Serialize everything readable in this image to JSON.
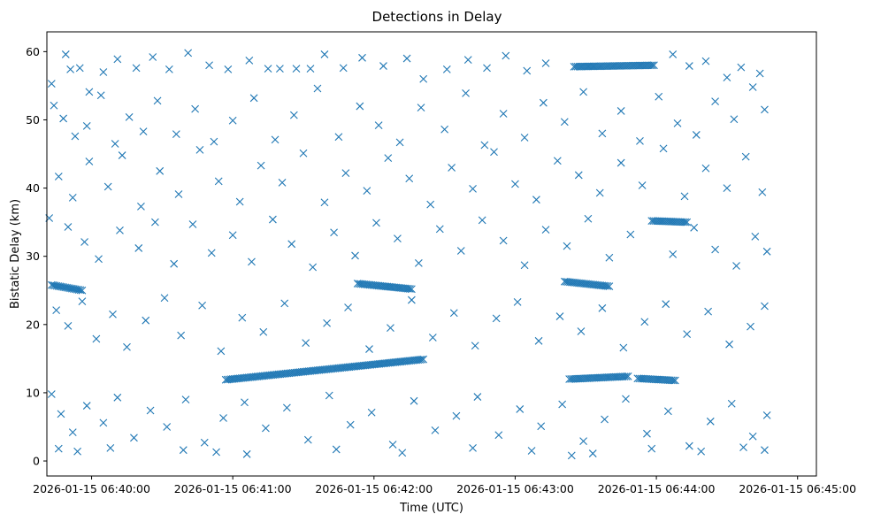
{
  "chart_data": {
    "type": "scatter",
    "title": "Detections in Delay",
    "xlabel": "Time (UTC)",
    "ylabel": "Bistatic Delay (km)",
    "marker": "x",
    "color": "#1f77b4",
    "grid": false,
    "x_axis": {
      "type": "time",
      "min": "2026-01-15 06:39:41",
      "max": "2026-01-15 06:45:08",
      "ticks": [
        "2026-01-15 06:40:00",
        "2026-01-15 06:41:00",
        "2026-01-15 06:42:00",
        "2026-01-15 06:43:00",
        "2026-01-15 06:44:00",
        "2026-01-15 06:45:00"
      ]
    },
    "y_axis": {
      "min": -2.2,
      "max": 62.9,
      "ticks": [
        0,
        10,
        20,
        30,
        40,
        50,
        60
      ]
    },
    "tracks": [
      {
        "start": [
          "2026-01-15 06:40:57",
          11.9
        ],
        "end": [
          "2026-01-15 06:42:21",
          14.9
        ]
      },
      {
        "start": [
          "2026-01-15 06:43:23",
          12.0
        ],
        "end": [
          "2026-01-15 06:43:48",
          12.4
        ]
      },
      {
        "start": [
          "2026-01-15 06:43:52",
          12.1
        ],
        "end": [
          "2026-01-15 06:44:08",
          11.8
        ]
      },
      {
        "start": [
          "2026-01-15 06:43:25",
          57.8
        ],
        "end": [
          "2026-01-15 06:43:59",
          58.0
        ]
      },
      {
        "start": [
          "2026-01-15 06:41:53",
          26.0
        ],
        "end": [
          "2026-01-15 06:42:16",
          25.2
        ]
      },
      {
        "start": [
          "2026-01-15 06:39:43",
          25.8
        ],
        "end": [
          "2026-01-15 06:39:56",
          25.0
        ]
      },
      {
        "start": [
          "2026-01-15 06:43:21",
          26.3
        ],
        "end": [
          "2026-01-15 06:43:40",
          25.6
        ]
      },
      {
        "start": [
          "2026-01-15 06:43:58",
          35.2
        ],
        "end": [
          "2026-01-15 06:44:13",
          35.0
        ]
      }
    ],
    "points": [
      [
        "2026-01-15 06:39:43",
        55.3
      ],
      [
        "2026-01-15 06:39:49",
        59.6
      ],
      [
        "2026-01-15 06:39:51",
        57.4
      ],
      [
        "2026-01-15 06:39:55",
        57.6
      ],
      [
        "2026-01-15 06:39:59",
        54.1
      ],
      [
        "2026-01-15 06:40:05",
        57.0
      ],
      [
        "2026-01-15 06:40:11",
        58.9
      ],
      [
        "2026-01-15 06:40:19",
        57.6
      ],
      [
        "2026-01-15 06:40:26",
        59.2
      ],
      [
        "2026-01-15 06:40:33",
        57.4
      ],
      [
        "2026-01-15 06:40:41",
        59.8
      ],
      [
        "2026-01-15 06:40:50",
        58.0
      ],
      [
        "2026-01-15 06:40:58",
        57.4
      ],
      [
        "2026-01-15 06:41:07",
        58.7
      ],
      [
        "2026-01-15 06:41:15",
        57.5
      ],
      [
        "2026-01-15 06:41:20",
        57.5
      ],
      [
        "2026-01-15 06:41:27",
        57.5
      ],
      [
        "2026-01-15 06:41:33",
        57.5
      ],
      [
        "2026-01-15 06:41:39",
        59.6
      ],
      [
        "2026-01-15 06:41:47",
        57.6
      ],
      [
        "2026-01-15 06:41:55",
        59.1
      ],
      [
        "2026-01-15 06:42:04",
        57.9
      ],
      [
        "2026-01-15 06:42:14",
        59.0
      ],
      [
        "2026-01-15 06:42:21",
        56.0
      ],
      [
        "2026-01-15 06:42:31",
        57.4
      ],
      [
        "2026-01-15 06:42:40",
        58.8
      ],
      [
        "2026-01-15 06:42:48",
        57.6
      ],
      [
        "2026-01-15 06:42:56",
        59.4
      ],
      [
        "2026-01-15 06:43:05",
        57.2
      ],
      [
        "2026-01-15 06:43:13",
        58.3
      ],
      [
        "2026-01-15 06:44:07",
        59.6
      ],
      [
        "2026-01-15 06:44:14",
        57.9
      ],
      [
        "2026-01-15 06:44:21",
        58.6
      ],
      [
        "2026-01-15 06:44:30",
        56.2
      ],
      [
        "2026-01-15 06:44:36",
        57.7
      ],
      [
        "2026-01-15 06:44:44",
        56.8
      ],
      [
        "2026-01-15 06:39:44",
        52.1
      ],
      [
        "2026-01-15 06:39:48",
        50.2
      ],
      [
        "2026-01-15 06:39:53",
        47.6
      ],
      [
        "2026-01-15 06:39:58",
        49.1
      ],
      [
        "2026-01-15 06:40:04",
        53.6
      ],
      [
        "2026-01-15 06:40:10",
        46.5
      ],
      [
        "2026-01-15 06:40:16",
        50.4
      ],
      [
        "2026-01-15 06:40:22",
        48.3
      ],
      [
        "2026-01-15 06:40:28",
        52.8
      ],
      [
        "2026-01-15 06:40:36",
        47.9
      ],
      [
        "2026-01-15 06:40:44",
        51.6
      ],
      [
        "2026-01-15 06:40:52",
        46.8
      ],
      [
        "2026-01-15 06:41:00",
        49.9
      ],
      [
        "2026-01-15 06:41:09",
        53.2
      ],
      [
        "2026-01-15 06:41:18",
        47.1
      ],
      [
        "2026-01-15 06:41:26",
        50.7
      ],
      [
        "2026-01-15 06:41:36",
        54.6
      ],
      [
        "2026-01-15 06:41:45",
        47.5
      ],
      [
        "2026-01-15 06:41:54",
        52.0
      ],
      [
        "2026-01-15 06:42:02",
        49.2
      ],
      [
        "2026-01-15 06:42:11",
        46.7
      ],
      [
        "2026-01-15 06:42:20",
        51.8
      ],
      [
        "2026-01-15 06:42:30",
        48.6
      ],
      [
        "2026-01-15 06:42:39",
        53.9
      ],
      [
        "2026-01-15 06:42:47",
        46.3
      ],
      [
        "2026-01-15 06:42:55",
        50.9
      ],
      [
        "2026-01-15 06:43:04",
        47.4
      ],
      [
        "2026-01-15 06:43:12",
        52.5
      ],
      [
        "2026-01-15 06:43:21",
        49.7
      ],
      [
        "2026-01-15 06:43:29",
        54.1
      ],
      [
        "2026-01-15 06:43:37",
        48.0
      ],
      [
        "2026-01-15 06:43:45",
        51.3
      ],
      [
        "2026-01-15 06:43:53",
        46.9
      ],
      [
        "2026-01-15 06:44:01",
        53.4
      ],
      [
        "2026-01-15 06:44:09",
        49.5
      ],
      [
        "2026-01-15 06:44:17",
        47.8
      ],
      [
        "2026-01-15 06:44:25",
        52.7
      ],
      [
        "2026-01-15 06:44:33",
        50.1
      ],
      [
        "2026-01-15 06:44:41",
        54.8
      ],
      [
        "2026-01-15 06:44:46",
        51.5
      ],
      [
        "2026-01-15 06:39:46",
        41.7
      ],
      [
        "2026-01-15 06:39:52",
        38.6
      ],
      [
        "2026-01-15 06:39:59",
        43.9
      ],
      [
        "2026-01-15 06:40:07",
        40.2
      ],
      [
        "2026-01-15 06:40:13",
        44.8
      ],
      [
        "2026-01-15 06:40:21",
        37.3
      ],
      [
        "2026-01-15 06:40:29",
        42.5
      ],
      [
        "2026-01-15 06:40:37",
        39.1
      ],
      [
        "2026-01-15 06:40:46",
        45.6
      ],
      [
        "2026-01-15 06:40:54",
        41.0
      ],
      [
        "2026-01-15 06:41:03",
        38.0
      ],
      [
        "2026-01-15 06:41:12",
        43.3
      ],
      [
        "2026-01-15 06:41:21",
        40.8
      ],
      [
        "2026-01-15 06:41:30",
        45.1
      ],
      [
        "2026-01-15 06:41:39",
        37.9
      ],
      [
        "2026-01-15 06:41:48",
        42.2
      ],
      [
        "2026-01-15 06:41:57",
        39.6
      ],
      [
        "2026-01-15 06:42:06",
        44.4
      ],
      [
        "2026-01-15 06:42:15",
        41.4
      ],
      [
        "2026-01-15 06:42:24",
        37.6
      ],
      [
        "2026-01-15 06:42:33",
        43.0
      ],
      [
        "2026-01-15 06:42:42",
        39.9
      ],
      [
        "2026-01-15 06:42:51",
        45.3
      ],
      [
        "2026-01-15 06:43:00",
        40.6
      ],
      [
        "2026-01-15 06:43:09",
        38.3
      ],
      [
        "2026-01-15 06:43:18",
        44.0
      ],
      [
        "2026-01-15 06:43:27",
        41.9
      ],
      [
        "2026-01-15 06:43:36",
        39.3
      ],
      [
        "2026-01-15 06:43:45",
        43.7
      ],
      [
        "2026-01-15 06:43:54",
        40.4
      ],
      [
        "2026-01-15 06:44:03",
        45.8
      ],
      [
        "2026-01-15 06:44:12",
        38.8
      ],
      [
        "2026-01-15 06:44:21",
        42.9
      ],
      [
        "2026-01-15 06:44:30",
        40.0
      ],
      [
        "2026-01-15 06:44:38",
        44.6
      ],
      [
        "2026-01-15 06:44:45",
        39.4
      ],
      [
        "2026-01-15 06:39:42",
        35.6
      ],
      [
        "2026-01-15 06:39:50",
        34.3
      ],
      [
        "2026-01-15 06:39:57",
        32.1
      ],
      [
        "2026-01-15 06:40:03",
        29.6
      ],
      [
        "2026-01-15 06:40:12",
        33.8
      ],
      [
        "2026-01-15 06:40:20",
        31.2
      ],
      [
        "2026-01-15 06:40:27",
        35.0
      ],
      [
        "2026-01-15 06:40:35",
        28.9
      ],
      [
        "2026-01-15 06:40:43",
        34.7
      ],
      [
        "2026-01-15 06:40:51",
        30.5
      ],
      [
        "2026-01-15 06:41:00",
        33.1
      ],
      [
        "2026-01-15 06:41:08",
        29.2
      ],
      [
        "2026-01-15 06:41:17",
        35.4
      ],
      [
        "2026-01-15 06:41:25",
        31.8
      ],
      [
        "2026-01-15 06:41:34",
        28.4
      ],
      [
        "2026-01-15 06:41:43",
        33.5
      ],
      [
        "2026-01-15 06:41:52",
        30.1
      ],
      [
        "2026-01-15 06:42:01",
        34.9
      ],
      [
        "2026-01-15 06:42:10",
        32.6
      ],
      [
        "2026-01-15 06:42:19",
        29.0
      ],
      [
        "2026-01-15 06:42:28",
        34.0
      ],
      [
        "2026-01-15 06:42:37",
        30.8
      ],
      [
        "2026-01-15 06:42:46",
        35.3
      ],
      [
        "2026-01-15 06:42:55",
        32.3
      ],
      [
        "2026-01-15 06:43:04",
        28.7
      ],
      [
        "2026-01-15 06:43:13",
        33.9
      ],
      [
        "2026-01-15 06:43:22",
        31.5
      ],
      [
        "2026-01-15 06:43:31",
        35.5
      ],
      [
        "2026-01-15 06:43:40",
        29.8
      ],
      [
        "2026-01-15 06:43:49",
        33.2
      ],
      [
        "2026-01-15 06:44:07",
        30.3
      ],
      [
        "2026-01-15 06:44:16",
        34.2
      ],
      [
        "2026-01-15 06:44:25",
        31.0
      ],
      [
        "2026-01-15 06:44:34",
        28.6
      ],
      [
        "2026-01-15 06:44:42",
        32.9
      ],
      [
        "2026-01-15 06:44:47",
        30.7
      ],
      [
        "2026-01-15 06:39:45",
        22.1
      ],
      [
        "2026-01-15 06:39:50",
        19.8
      ],
      [
        "2026-01-15 06:39:56",
        23.4
      ],
      [
        "2026-01-15 06:40:02",
        17.9
      ],
      [
        "2026-01-15 06:40:09",
        21.5
      ],
      [
        "2026-01-15 06:40:15",
        16.7
      ],
      [
        "2026-01-15 06:40:23",
        20.6
      ],
      [
        "2026-01-15 06:40:31",
        23.9
      ],
      [
        "2026-01-15 06:40:38",
        18.4
      ],
      [
        "2026-01-15 06:40:47",
        22.8
      ],
      [
        "2026-01-15 06:40:55",
        16.1
      ],
      [
        "2026-01-15 06:41:04",
        21.0
      ],
      [
        "2026-01-15 06:41:13",
        18.9
      ],
      [
        "2026-01-15 06:41:22",
        23.1
      ],
      [
        "2026-01-15 06:41:31",
        17.3
      ],
      [
        "2026-01-15 06:41:40",
        20.2
      ],
      [
        "2026-01-15 06:41:49",
        22.5
      ],
      [
        "2026-01-15 06:41:58",
        16.4
      ],
      [
        "2026-01-15 06:42:07",
        19.5
      ],
      [
        "2026-01-15 06:42:16",
        23.6
      ],
      [
        "2026-01-15 06:42:25",
        18.1
      ],
      [
        "2026-01-15 06:42:34",
        21.7
      ],
      [
        "2026-01-15 06:42:43",
        16.9
      ],
      [
        "2026-01-15 06:42:52",
        20.9
      ],
      [
        "2026-01-15 06:43:01",
        23.3
      ],
      [
        "2026-01-15 06:43:10",
        17.6
      ],
      [
        "2026-01-15 06:43:19",
        21.2
      ],
      [
        "2026-01-15 06:43:28",
        19.0
      ],
      [
        "2026-01-15 06:43:37",
        22.4
      ],
      [
        "2026-01-15 06:43:46",
        16.6
      ],
      [
        "2026-01-15 06:43:55",
        20.4
      ],
      [
        "2026-01-15 06:44:04",
        23.0
      ],
      [
        "2026-01-15 06:44:13",
        18.6
      ],
      [
        "2026-01-15 06:44:22",
        21.9
      ],
      [
        "2026-01-15 06:44:31",
        17.1
      ],
      [
        "2026-01-15 06:44:40",
        19.7
      ],
      [
        "2026-01-15 06:44:46",
        22.7
      ],
      [
        "2026-01-15 06:39:43",
        9.8
      ],
      [
        "2026-01-15 06:39:47",
        6.9
      ],
      [
        "2026-01-15 06:39:52",
        4.2
      ],
      [
        "2026-01-15 06:39:58",
        8.1
      ],
      [
        "2026-01-15 06:40:05",
        5.6
      ],
      [
        "2026-01-15 06:40:11",
        9.3
      ],
      [
        "2026-01-15 06:40:18",
        3.4
      ],
      [
        "2026-01-15 06:40:25",
        7.4
      ],
      [
        "2026-01-15 06:40:32",
        5.0
      ],
      [
        "2026-01-15 06:40:40",
        9.0
      ],
      [
        "2026-01-15 06:40:48",
        2.7
      ],
      [
        "2026-01-15 06:40:56",
        6.3
      ],
      [
        "2026-01-15 06:41:05",
        8.6
      ],
      [
        "2026-01-15 06:41:14",
        4.8
      ],
      [
        "2026-01-15 06:41:23",
        7.8
      ],
      [
        "2026-01-15 06:41:32",
        3.1
      ],
      [
        "2026-01-15 06:41:41",
        9.6
      ],
      [
        "2026-01-15 06:41:50",
        5.3
      ],
      [
        "2026-01-15 06:41:59",
        7.1
      ],
      [
        "2026-01-15 06:42:08",
        2.4
      ],
      [
        "2026-01-15 06:42:17",
        8.8
      ],
      [
        "2026-01-15 06:42:26",
        4.5
      ],
      [
        "2026-01-15 06:42:35",
        6.6
      ],
      [
        "2026-01-15 06:42:44",
        9.4
      ],
      [
        "2026-01-15 06:42:53",
        3.8
      ],
      [
        "2026-01-15 06:43:02",
        7.6
      ],
      [
        "2026-01-15 06:43:11",
        5.1
      ],
      [
        "2026-01-15 06:43:20",
        8.3
      ],
      [
        "2026-01-15 06:43:29",
        2.9
      ],
      [
        "2026-01-15 06:43:38",
        6.1
      ],
      [
        "2026-01-15 06:43:47",
        9.1
      ],
      [
        "2026-01-15 06:43:56",
        4.0
      ],
      [
        "2026-01-15 06:44:05",
        7.3
      ],
      [
        "2026-01-15 06:44:14",
        2.2
      ],
      [
        "2026-01-15 06:44:23",
        5.8
      ],
      [
        "2026-01-15 06:44:32",
        8.4
      ],
      [
        "2026-01-15 06:44:41",
        3.6
      ],
      [
        "2026-01-15 06:44:47",
        6.7
      ],
      [
        "2026-01-15 06:39:46",
        1.8
      ],
      [
        "2026-01-15 06:39:54",
        1.4
      ],
      [
        "2026-01-15 06:40:08",
        1.9
      ],
      [
        "2026-01-15 06:40:39",
        1.6
      ],
      [
        "2026-01-15 06:40:53",
        1.3
      ],
      [
        "2026-01-15 06:41:06",
        1.0
      ],
      [
        "2026-01-15 06:41:44",
        1.7
      ],
      [
        "2026-01-15 06:42:12",
        1.2
      ],
      [
        "2026-01-15 06:42:42",
        1.9
      ],
      [
        "2026-01-15 06:43:07",
        1.5
      ],
      [
        "2026-01-15 06:43:24",
        0.8
      ],
      [
        "2026-01-15 06:43:33",
        1.1
      ],
      [
        "2026-01-15 06:43:58",
        1.8
      ],
      [
        "2026-01-15 06:44:19",
        1.4
      ],
      [
        "2026-01-15 06:44:37",
        2.0
      ],
      [
        "2026-01-15 06:44:46",
        1.6
      ]
    ]
  }
}
